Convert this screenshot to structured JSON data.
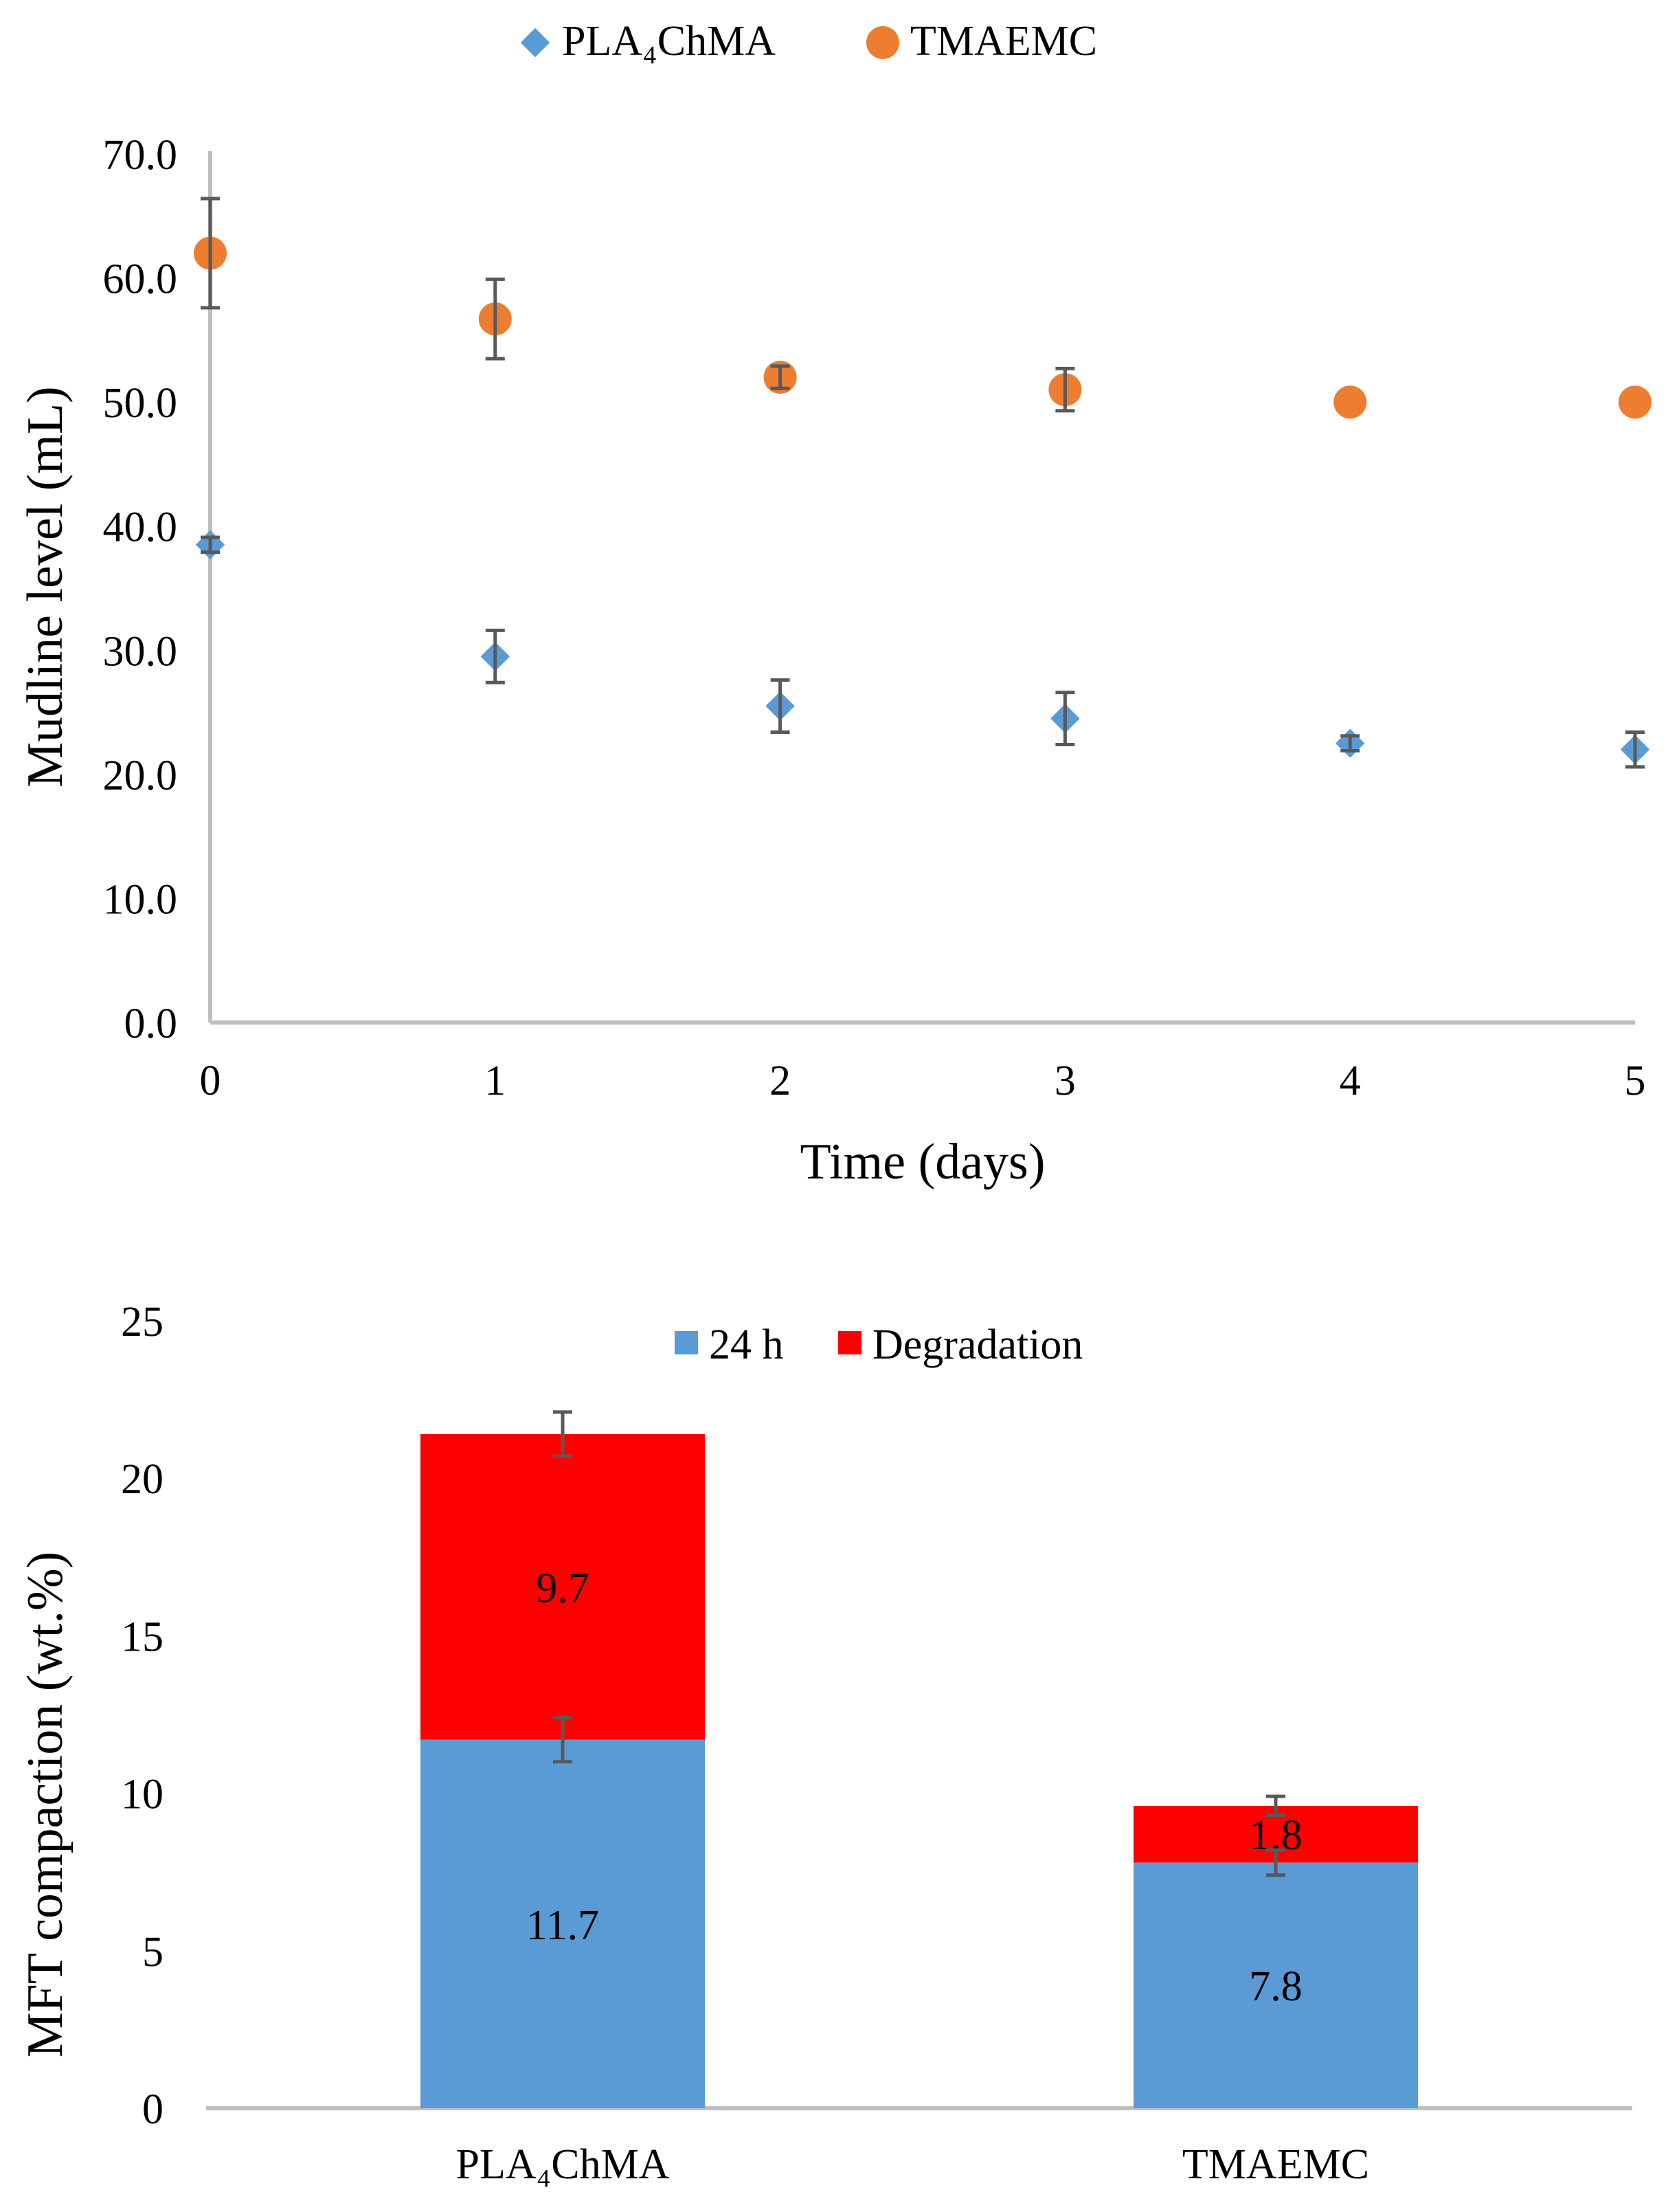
{
  "chart_data": [
    {
      "type": "scatter",
      "title": "",
      "xlabel": "Time (days)",
      "ylabel": "Mudline level (mL)",
      "xlim": [
        0,
        5
      ],
      "ylim": [
        0,
        70
      ],
      "x_ticks": [
        0,
        1,
        2,
        3,
        4,
        5
      ],
      "x_tick_labels": [
        "0",
        "1",
        "2",
        "3",
        "4",
        "5"
      ],
      "y_ticks": [
        0,
        10,
        20,
        30,
        40,
        50,
        60,
        70
      ],
      "y_tick_labels": [
        "0.0",
        "10.0",
        "20.0",
        "30.0",
        "40.0",
        "50.0",
        "60.0",
        "70.0"
      ],
      "grid": false,
      "legend_position": "top-center",
      "series": [
        {
          "name": "PLA₄ChMA",
          "marker": "diamond",
          "color": "#5B9BD5",
          "x": [
            0,
            1,
            2,
            3,
            4,
            5
          ],
          "y": [
            38.5,
            29.5,
            25.5,
            24.5,
            22.5,
            22.0
          ],
          "error": [
            0.6,
            2.1,
            2.1,
            2.1,
            0.6,
            1.4
          ]
        },
        {
          "name": "TMAEMC",
          "marker": "circle",
          "color": "#ED7D31",
          "x": [
            0,
            1,
            2,
            3,
            4,
            5
          ],
          "y": [
            62.0,
            56.7,
            52.0,
            51.0,
            50.0,
            50.0
          ],
          "error": [
            4.4,
            3.2,
            0.9,
            1.7,
            0,
            0
          ]
        }
      ]
    },
    {
      "type": "bar",
      "stacked": true,
      "title": "",
      "xlabel": "",
      "ylabel": "MFT compaction (wt.%)",
      "ylim": [
        0,
        25
      ],
      "y_ticks": [
        0,
        5,
        10,
        15,
        20,
        25
      ],
      "y_tick_labels": [
        "0",
        "5",
        "10",
        "15",
        "20",
        "25"
      ],
      "categories": [
        "PLA₄ChMA",
        "TMAEMC"
      ],
      "grid": false,
      "legend_position": "top-center",
      "series": [
        {
          "name": "24 h",
          "color": "#5B9BD5",
          "values": [
            11.7,
            7.8
          ],
          "labels": [
            "11.7",
            "7.8"
          ],
          "error": [
            0.7,
            0.4
          ]
        },
        {
          "name": "Degradation",
          "color": "#FF0000",
          "values": [
            9.7,
            1.8
          ],
          "labels": [
            "9.7",
            "1.8"
          ],
          "error": [
            0.7,
            0.3
          ]
        }
      ]
    }
  ]
}
